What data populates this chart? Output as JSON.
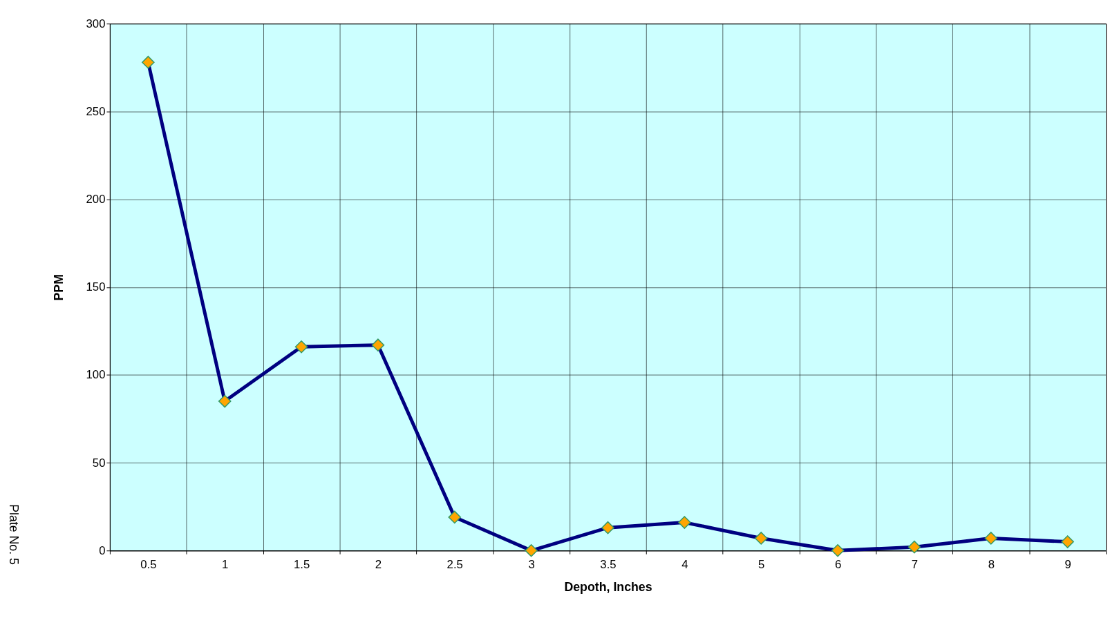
{
  "chart_data": {
    "type": "line",
    "xlabel": "Depoth, Inches",
    "ylabel": "PPM",
    "categories": [
      "0.5",
      "1",
      "1.5",
      "2",
      "2.5",
      "3",
      "3.5",
      "4",
      "5",
      "6",
      "7",
      "8",
      "9"
    ],
    "series": [
      {
        "color": "#000080",
        "values": [
          278,
          85,
          116,
          117,
          19,
          0,
          13,
          16,
          7,
          0,
          2,
          7,
          5
        ]
      }
    ],
    "ylim": [
      0,
      300
    ],
    "yticks": [
      0,
      50,
      100,
      150,
      200,
      250,
      300
    ],
    "grid": true,
    "marker": "diamond",
    "line_style": "solid",
    "annotations": [
      "Plate No. 5"
    ]
  }
}
